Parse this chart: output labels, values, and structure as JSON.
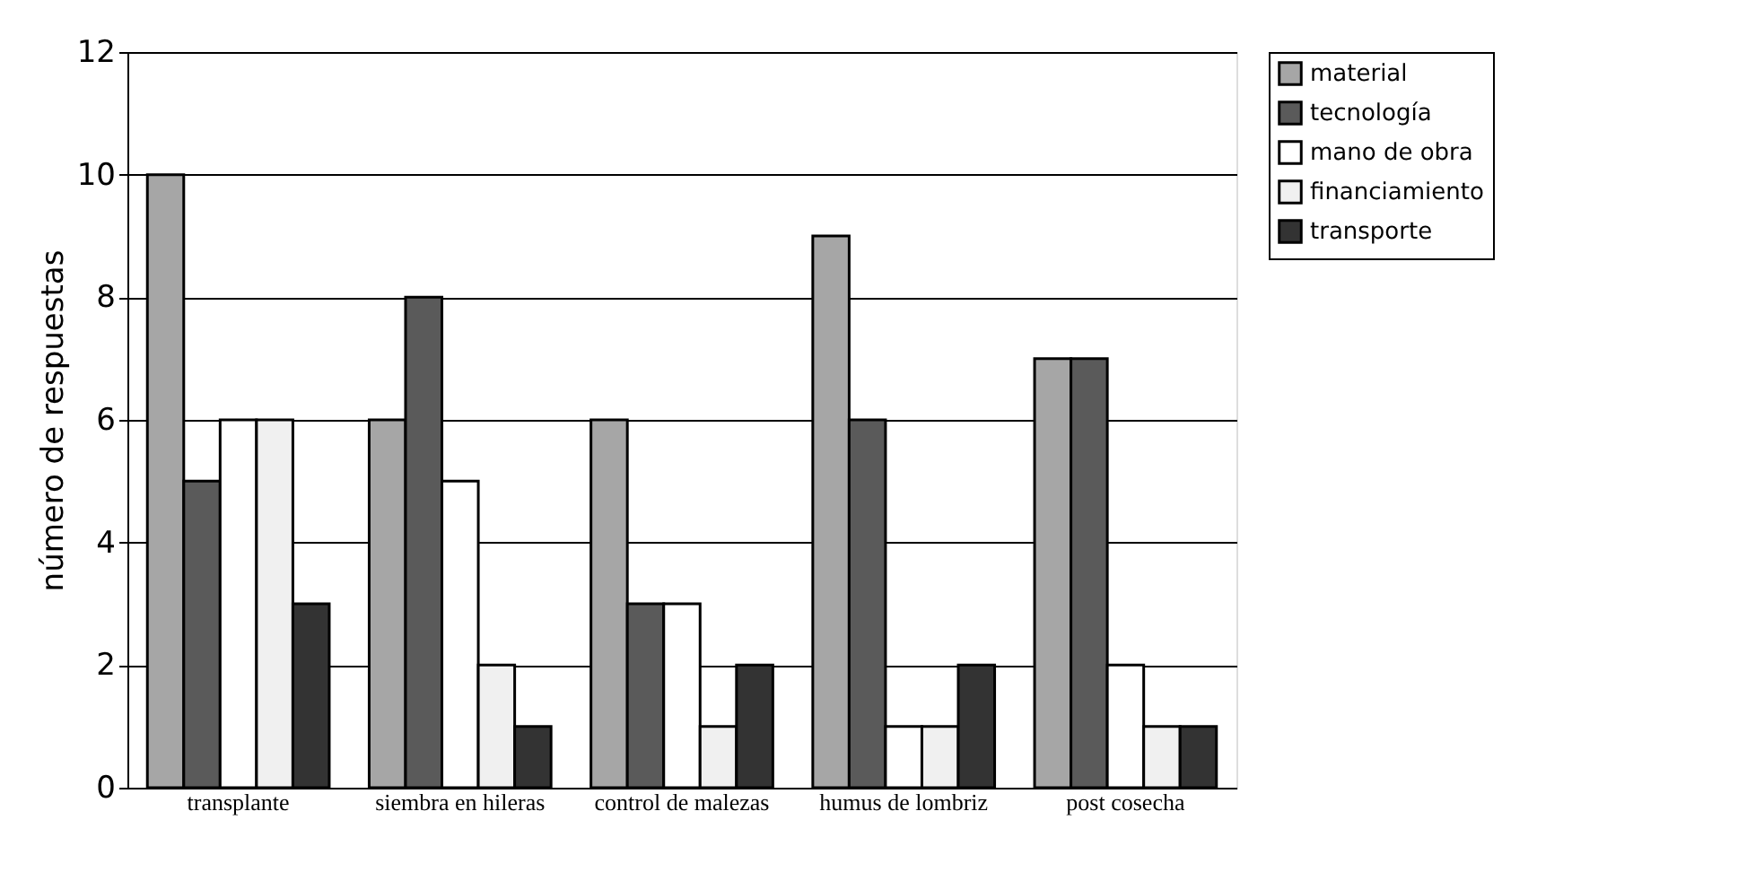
{
  "chart_data": {
    "type": "bar",
    "ylabel": "número de respuestas",
    "categories": [
      "transplante",
      "siembra en hileras",
      "control de malezas",
      "humus de lombriz",
      "post cosecha"
    ],
    "series": [
      {
        "name": "material",
        "color": "#a6a6a6",
        "values": [
          10,
          6,
          6,
          9,
          7
        ]
      },
      {
        "name": "tecnología",
        "color": "#5a5a5a",
        "values": [
          5,
          8,
          3,
          6,
          7
        ]
      },
      {
        "name": "mano de obra",
        "color": "#ffffff",
        "values": [
          6,
          5,
          3,
          1,
          2
        ]
      },
      {
        "name": "financiamiento",
        "color": "#f0f0f0",
        "values": [
          6,
          2,
          1,
          1,
          1
        ]
      },
      {
        "name": "transporte",
        "color": "#333333",
        "values": [
          3,
          1,
          2,
          2,
          1
        ]
      }
    ],
    "ylim": [
      0,
      12
    ],
    "yticks": [
      0,
      2,
      4,
      6,
      8,
      10,
      12
    ],
    "grid": "y",
    "legend": "right"
  }
}
